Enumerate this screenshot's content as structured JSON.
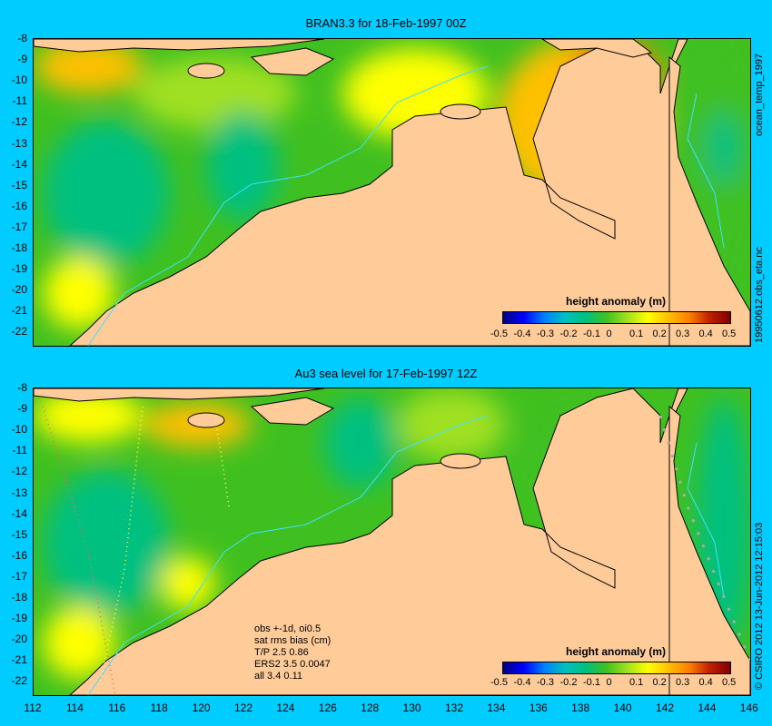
{
  "top_panel": {
    "title": "BRAN3.3 for 18-Feb-1997 00Z",
    "side_label": "19950612.obs_eta.nc",
    "side_label_top": "ocean_temp_1997"
  },
  "bottom_panel": {
    "title": "Au3 sea level  for 17-Feb-1997 12Z",
    "side_label": "© CSIRO 2012  13-Jun-2012 12:15:03",
    "stats": [
      "obs +-1d, oi0.5",
      "sat rms bias (cm)",
      "T/P  2.5 0.86",
      "ERS2 3.5 0.0047",
      "all 3.4 0.11"
    ]
  },
  "colorbar": {
    "title": "height anomaly (m)",
    "ticks": [
      "-0.5",
      "-0.4",
      "-0.3",
      "-0.2",
      "-0.1",
      "0",
      "0.1",
      "0.2",
      "0.3",
      "0.4",
      "0.5"
    ],
    "colors": [
      "#000080",
      "#0000ff",
      "#0080ff",
      "#00c0c0",
      "#00c080",
      "#40c020",
      "#a0e020",
      "#ffff00",
      "#ffc000",
      "#ff8000",
      "#c02000",
      "#800000"
    ]
  },
  "map_data": {
    "lat_ticks": [
      "-8",
      "-9",
      "-10",
      "-11",
      "-12",
      "-13",
      "-14",
      "-15",
      "-16",
      "-17",
      "-18",
      "-19",
      "-20",
      "-21",
      "-22"
    ],
    "lon_ticks": [
      "112",
      "114",
      "116",
      "118",
      "120",
      "122",
      "124",
      "126",
      "128",
      "130",
      "132",
      "134",
      "136",
      "138",
      "140",
      "142",
      "144",
      "146"
    ],
    "land_color": "#ffcc99",
    "ocean_base_color": "#40c020"
  }
}
